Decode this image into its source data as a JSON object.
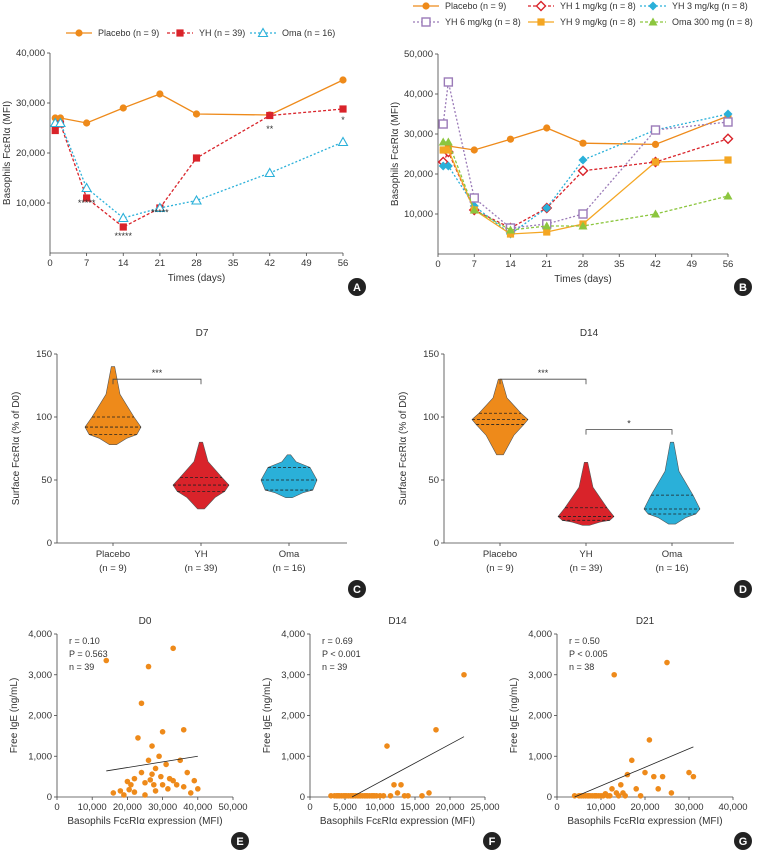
{
  "colors": {
    "placebo": "#ee8a1a",
    "yh": "#d9232a",
    "oma": "#2ab0d9",
    "yh1": "#d9232a",
    "yh3": "#2ab0d9",
    "yh6": "#9b7bb8",
    "yh9": "#f4a623",
    "oma300": "#8cc63f",
    "scatter": "#ee8a1a"
  },
  "chart_data": [
    {
      "panel": "A",
      "type": "line",
      "xlabel": "Times (days)",
      "ylabel": "Basophils FcεRIα (MFI)",
      "xlim": [
        0,
        56
      ],
      "ylim": [
        0,
        40000
      ],
      "xticks": [
        "0",
        "7",
        "14",
        "21",
        "28",
        "35",
        "42",
        "49",
        "56"
      ],
      "yticks": [
        "10,000",
        "20,000",
        "30,000",
        "40,000"
      ],
      "series": [
        {
          "name": "Placebo (n = 9)",
          "x": [
            1,
            2,
            7,
            14,
            21,
            28,
            42,
            56
          ],
          "y": [
            27000,
            27000,
            26000,
            29000,
            31800,
            27800,
            27600,
            34600
          ]
        },
        {
          "name": "YH (n = 39)",
          "x": [
            1,
            2,
            7,
            14,
            21,
            28,
            42,
            56
          ],
          "y": [
            24500,
            25800,
            11000,
            5200,
            9000,
            19000,
            27500,
            28800
          ]
        },
        {
          "name": "Oma (n = 16)",
          "x": [
            1,
            2,
            7,
            14,
            21,
            28,
            42,
            56
          ],
          "y": [
            26000,
            26000,
            13000,
            7000,
            9000,
            10500,
            16000,
            22200
          ]
        }
      ],
      "annotations": [
        {
          "x": 7,
          "y": 9400,
          "text": "*****"
        },
        {
          "x": 14,
          "y": 2800,
          "text": "*****"
        },
        {
          "x": 21,
          "y": 7500,
          "text": "*****"
        },
        {
          "x": 42,
          "y": 24200,
          "text": "**"
        },
        {
          "x": 56,
          "y": 26000,
          "text": "*"
        }
      ],
      "letter": "A"
    },
    {
      "panel": "B",
      "type": "line",
      "xlabel": "Times (days)",
      "ylabel": "Basophils FcεRIα (MFI)",
      "xlim": [
        0,
        56
      ],
      "ylim": [
        0,
        50000
      ],
      "xticks": [
        "0",
        "7",
        "14",
        "21",
        "28",
        "35",
        "42",
        "49",
        "56"
      ],
      "yticks": [
        "10,000",
        "20,000",
        "30,000",
        "40,000",
        "50,000"
      ],
      "series": [
        {
          "name": "Placebo (n = 9)",
          "x": [
            1,
            2,
            7,
            14,
            21,
            28,
            42,
            56
          ],
          "y": [
            26000,
            27000,
            26000,
            28700,
            31500,
            27700,
            27400,
            34500
          ]
        },
        {
          "name": "YH 1 mg/kg (n = 8)",
          "x": [
            1,
            2,
            7,
            14,
            21,
            28,
            42,
            56
          ],
          "y": [
            23000,
            25500,
            11000,
            6500,
            11500,
            20800,
            23000,
            28800
          ]
        },
        {
          "name": "YH 3 mg/kg (n = 8)",
          "x": [
            1,
            2,
            7,
            14,
            21,
            28,
            42,
            56
          ],
          "y": [
            22000,
            22000,
            12000,
            5000,
            11500,
            23500,
            31000,
            35000
          ]
        },
        {
          "name": "YH 6 mg/kg (n = 8)",
          "x": [
            1,
            2,
            7,
            14,
            21,
            28,
            42,
            56
          ],
          "y": [
            32500,
            43000,
            14000,
            6500,
            7500,
            10000,
            31000,
            33000
          ]
        },
        {
          "name": "YH 9 mg/kg (n = 8)",
          "x": [
            1,
            2,
            7,
            14,
            21,
            28,
            42,
            56
          ],
          "y": [
            26000,
            26000,
            11000,
            5000,
            5500,
            7500,
            23000,
            23500
          ]
        },
        {
          "name": "Oma 300 mg (n = 8)",
          "x": [
            1,
            2,
            7,
            14,
            21,
            28,
            42,
            56
          ],
          "y": [
            28000,
            28000,
            11000,
            6000,
            7000,
            7000,
            10000,
            14500
          ]
        }
      ],
      "letter": "B"
    },
    {
      "panel": "C",
      "type": "violin",
      "title": "D7",
      "ylabel": "Surface FcεRIα (% of D0)",
      "ylim": [
        0,
        150
      ],
      "yticks": [
        "0",
        "50",
        "100",
        "150"
      ],
      "categories": [
        "Placebo",
        "YH",
        "Oma"
      ],
      "sublabels": [
        "(n = 9)",
        "(n = 39)",
        "(n = 16)"
      ],
      "violins": [
        {
          "min": 78,
          "q1": 86,
          "median": 92,
          "q3": 100,
          "max": 140
        },
        {
          "min": 27,
          "q1": 41,
          "median": 46,
          "q3": 52,
          "max": 80
        },
        {
          "min": 36,
          "q1": 42,
          "median": 50,
          "q3": 60,
          "max": 70
        }
      ],
      "brackets": [
        {
          "from": 0,
          "to": 1,
          "y": 130,
          "text": "***"
        }
      ],
      "letter": "C"
    },
    {
      "panel": "D",
      "type": "violin",
      "title": "D14",
      "ylabel": "Surface FcεRIα (% of D0)",
      "ylim": [
        0,
        150
      ],
      "yticks": [
        "0",
        "50",
        "100",
        "150"
      ],
      "categories": [
        "Placebo",
        "YH",
        "Oma"
      ],
      "sublabels": [
        "(n = 9)",
        "(n = 39)",
        "(n = 16)"
      ],
      "violins": [
        {
          "min": 70,
          "q1": 94,
          "median": 98,
          "q3": 103,
          "max": 130
        },
        {
          "min": 14,
          "q1": 18,
          "median": 21,
          "q3": 28,
          "max": 64
        },
        {
          "min": 15,
          "q1": 23,
          "median": 27,
          "q3": 38,
          "max": 80
        }
      ],
      "brackets": [
        {
          "from": 0,
          "to": 1,
          "y": 130,
          "text": "***"
        },
        {
          "from": 1,
          "to": 2,
          "y": 90,
          "text": "*"
        }
      ],
      "letter": "D"
    },
    {
      "panel": "E",
      "type": "scatter",
      "title": "D0",
      "xlabel": "Basophils FcεRIα expression (MFI)",
      "ylabel": "Free IgE (ng/mL)",
      "xlim": [
        0,
        50000
      ],
      "ylim": [
        0,
        4000
      ],
      "xticks": [
        "0",
        "10,000",
        "20,000",
        "30,000",
        "40,000",
        "50,000"
      ],
      "yticks": [
        "0",
        "1,000",
        "2,000",
        "3,000",
        "4,000"
      ],
      "stats": {
        "r": "r = 0.10",
        "p": "P = 0.563",
        "n": "n = 39"
      },
      "fit": {
        "x": [
          14000,
          40000
        ],
        "y": [
          640,
          1000
        ]
      },
      "points": [
        [
          14000,
          3350
        ],
        [
          16000,
          100
        ],
        [
          18000,
          150
        ],
        [
          19000,
          50
        ],
        [
          20000,
          380
        ],
        [
          21000,
          300
        ],
        [
          22000,
          450
        ],
        [
          22000,
          120
        ],
        [
          23000,
          1450
        ],
        [
          24000,
          2300
        ],
        [
          24000,
          600
        ],
        [
          25000,
          350
        ],
        [
          25000,
          50
        ],
        [
          26000,
          3200
        ],
        [
          26000,
          900
        ],
        [
          26500,
          420
        ],
        [
          27000,
          1250
        ],
        [
          27500,
          300
        ],
        [
          28000,
          150
        ],
        [
          28000,
          700
        ],
        [
          29000,
          1000
        ],
        [
          29500,
          500
        ],
        [
          30000,
          300
        ],
        [
          30000,
          1600
        ],
        [
          31000,
          800
        ],
        [
          31500,
          200
        ],
        [
          32000,
          450
        ],
        [
          33000,
          3650
        ],
        [
          33000,
          400
        ],
        [
          34000,
          300
        ],
        [
          35000,
          900
        ],
        [
          36000,
          1650
        ],
        [
          36000,
          250
        ],
        [
          37000,
          600
        ],
        [
          38000,
          100
        ],
        [
          39000,
          400
        ],
        [
          40000,
          200
        ],
        [
          20500,
          180
        ],
        [
          27000,
          560
        ]
      ],
      "letter": "E"
    },
    {
      "panel": "F",
      "type": "scatter",
      "title": "D14",
      "xlabel": "Basophils FcεRIα expression (MFI)",
      "ylabel": "Free IgE (ng/mL)",
      "xlim": [
        0,
        25000
      ],
      "ylim": [
        0,
        4000
      ],
      "xticks": [
        "0",
        "5,000",
        "10,000",
        "15,000",
        "20,000",
        "25,000"
      ],
      "yticks": [
        "0",
        "1,000",
        "2,000",
        "3,000",
        "4,000"
      ],
      "stats": {
        "r": "r = 0.69",
        "p": "P < 0.001",
        "n": "n = 39"
      },
      "fit": {
        "x": [
          6000,
          22000
        ],
        "y": [
          0,
          1480
        ]
      },
      "points": [
        [
          3000,
          30
        ],
        [
          3500,
          30
        ],
        [
          4000,
          30
        ],
        [
          4200,
          30
        ],
        [
          4500,
          30
        ],
        [
          4800,
          30
        ],
        [
          5000,
          30
        ],
        [
          5200,
          30
        ],
        [
          5500,
          30
        ],
        [
          5800,
          30
        ],
        [
          6000,
          30
        ],
        [
          6200,
          30
        ],
        [
          6500,
          30
        ],
        [
          6800,
          30
        ],
        [
          7000,
          30
        ],
        [
          7200,
          30
        ],
        [
          7500,
          30
        ],
        [
          7800,
          30
        ],
        [
          8000,
          30
        ],
        [
          8200,
          30
        ],
        [
          8500,
          30
        ],
        [
          8800,
          30
        ],
        [
          9000,
          30
        ],
        [
          9200,
          30
        ],
        [
          9500,
          30
        ],
        [
          10000,
          30
        ],
        [
          10500,
          30
        ],
        [
          11000,
          1250
        ],
        [
          11500,
          30
        ],
        [
          12000,
          300
        ],
        [
          12500,
          100
        ],
        [
          13000,
          300
        ],
        [
          13500,
          30
        ],
        [
          14000,
          30
        ],
        [
          16000,
          30
        ],
        [
          17000,
          100
        ],
        [
          18000,
          1650
        ],
        [
          22000,
          3000
        ],
        [
          3800,
          30
        ]
      ],
      "letter": "F"
    },
    {
      "panel": "G",
      "type": "scatter",
      "title": "D21",
      "xlabel": "Basophils FcεRIα expression (MFI)",
      "ylabel": "Free IgE (ng/mL)",
      "xlim": [
        0,
        40000
      ],
      "ylim": [
        0,
        4000
      ],
      "xticks": [
        "0",
        "10,000",
        "20,000",
        "30,000",
        "40,000"
      ],
      "yticks": [
        "0",
        "1,000",
        "2,000",
        "3,000",
        "4,000"
      ],
      "stats": {
        "r": "r = 0.50",
        "p": "P < 0.005",
        "n": "n = 38"
      },
      "fit": {
        "x": [
          4000,
          31000
        ],
        "y": [
          0,
          1230
        ]
      },
      "points": [
        [
          4000,
          30
        ],
        [
          5000,
          30
        ],
        [
          6000,
          30
        ],
        [
          6500,
          30
        ],
        [
          7000,
          30
        ],
        [
          7500,
          30
        ],
        [
          8000,
          30
        ],
        [
          8500,
          30
        ],
        [
          9000,
          30
        ],
        [
          9500,
          30
        ],
        [
          10000,
          30
        ],
        [
          10500,
          30
        ],
        [
          11000,
          80
        ],
        [
          12000,
          30
        ],
        [
          12500,
          200
        ],
        [
          13000,
          3000
        ],
        [
          14000,
          30
        ],
        [
          14500,
          300
        ],
        [
          15000,
          100
        ],
        [
          16000,
          550
        ],
        [
          17000,
          900
        ],
        [
          18000,
          200
        ],
        [
          19000,
          30
        ],
        [
          20000,
          600
        ],
        [
          21000,
          1400
        ],
        [
          22000,
          500
        ],
        [
          23000,
          200
        ],
        [
          24000,
          500
        ],
        [
          25000,
          3300
        ],
        [
          26000,
          100
        ],
        [
          30000,
          600
        ],
        [
          31000,
          500
        ],
        [
          5500,
          30
        ],
        [
          7200,
          30
        ],
        [
          8800,
          30
        ],
        [
          11500,
          30
        ],
        [
          13500,
          100
        ],
        [
          15500,
          30
        ]
      ],
      "letter": "G"
    }
  ]
}
